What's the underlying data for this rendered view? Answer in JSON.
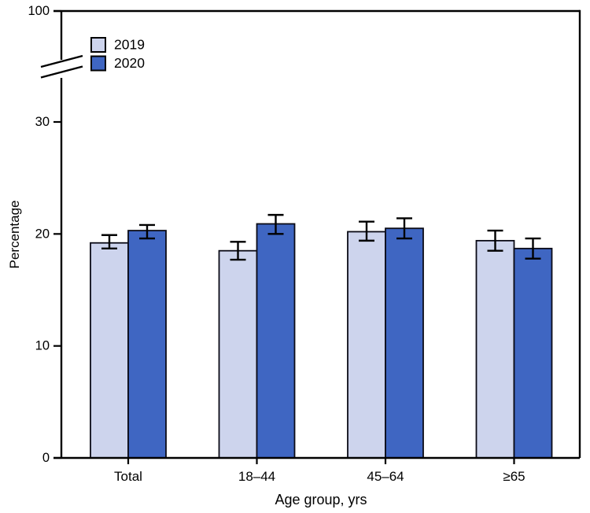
{
  "figure": {
    "ylabel": "Percentage",
    "xlabel": "Age group, yrs"
  },
  "legend": {
    "position": "top-left",
    "items": [
      {
        "label": "2019",
        "color": "#cdd4ed"
      },
      {
        "label": "2020",
        "color": "#3f66c2"
      }
    ]
  },
  "chart_data": {
    "type": "bar",
    "title": "",
    "xlabel": "Age group, yrs",
    "ylabel": "Percentage",
    "categories": [
      "Total",
      "18–44",
      "45–64",
      "≥65"
    ],
    "series": [
      {
        "name": "2019",
        "color": "#cdd4ed",
        "values": [
          19.2,
          18.5,
          20.2,
          19.4
        ],
        "ci_low": [
          18.7,
          17.7,
          19.4,
          18.5
        ],
        "ci_high": [
          19.9,
          19.3,
          21.1,
          20.3
        ]
      },
      {
        "name": "2020",
        "color": "#3f66c2",
        "values": [
          20.3,
          20.9,
          20.5,
          18.7
        ],
        "ci_low": [
          19.6,
          20.0,
          19.6,
          17.8
        ],
        "ci_high": [
          20.8,
          21.7,
          21.4,
          19.6
        ]
      }
    ],
    "y_ticks": [
      0,
      10,
      20,
      30
    ],
    "y_top_tick": 100,
    "axis_break": true,
    "ylim_display": [
      0,
      33
    ],
    "error_bars": true,
    "grid": false,
    "legend_position": "top-left"
  },
  "colors": {
    "background": "#ffffff",
    "axis": "#000000",
    "bar_outline": "#0b0b16",
    "error_bar": "#000000",
    "bar_2019": "#cdd4ed",
    "bar_2020": "#3f66c2"
  }
}
